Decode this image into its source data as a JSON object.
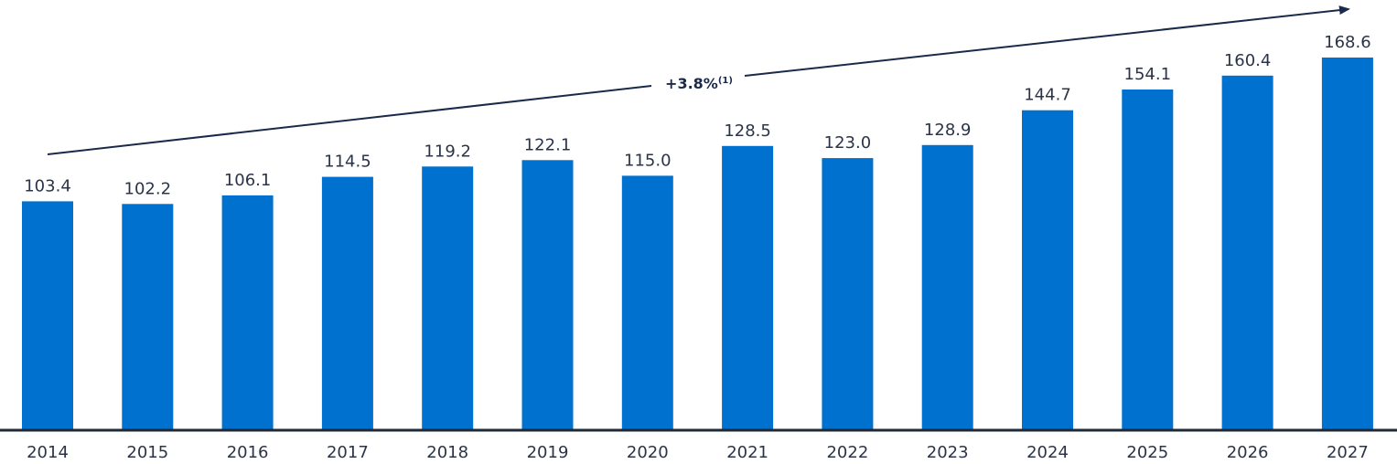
{
  "chart_data": {
    "type": "bar",
    "categories": [
      "2014",
      "2015",
      "2016",
      "2017",
      "2018",
      "2019",
      "2020",
      "2021",
      "2022",
      "2023",
      "2024",
      "2025",
      "2026",
      "2027"
    ],
    "values": [
      103.4,
      102.2,
      106.1,
      114.5,
      119.2,
      122.1,
      115.0,
      128.5,
      123.0,
      128.9,
      144.7,
      154.1,
      160.4,
      168.6
    ],
    "value_labels": [
      "103.4",
      "102.2",
      "106.1",
      "114.5",
      "119.2",
      "122.1",
      "115.0",
      "128.5",
      "123.0",
      "128.9",
      "144.7",
      "154.1",
      "160.4",
      "168.6"
    ],
    "title": "",
    "xlabel": "",
    "ylabel": "",
    "ylim": [
      0,
      168.6
    ],
    "grid": false,
    "bar_color": "#0071CE",
    "axis_color": "#1f2937",
    "annotation": {
      "text": "+3.8%",
      "superscript": "(1)",
      "type": "trend-arrow",
      "color": "#1b2a4a"
    }
  }
}
